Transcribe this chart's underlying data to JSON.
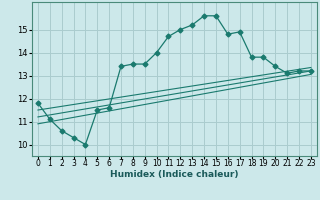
{
  "title": "",
  "xlabel": "Humidex (Indice chaleur)",
  "ylabel": "",
  "background_color": "#cce8ea",
  "grid_color": "#aaccce",
  "line_color": "#1a7a6e",
  "xlim": [
    -0.5,
    23.5
  ],
  "ylim": [
    9.5,
    16.2
  ],
  "xticks": [
    0,
    1,
    2,
    3,
    4,
    5,
    6,
    7,
    8,
    9,
    10,
    11,
    12,
    13,
    14,
    15,
    16,
    17,
    18,
    19,
    20,
    21,
    22,
    23
  ],
  "yticks": [
    10,
    11,
    12,
    13,
    14,
    15
  ],
  "series": [
    {
      "x": [
        0,
        1,
        2,
        3,
        4,
        5,
        6,
        7,
        8,
        9,
        10,
        11,
        12,
        13,
        14,
        15,
        16,
        17,
        18,
        19,
        20,
        21,
        22,
        23
      ],
      "y": [
        11.8,
        11.1,
        10.6,
        10.3,
        10.0,
        11.5,
        11.6,
        13.4,
        13.5,
        13.5,
        14.0,
        14.7,
        15.0,
        15.2,
        15.6,
        15.6,
        14.8,
        14.9,
        13.8,
        13.8,
        13.4,
        13.1,
        13.2,
        13.2
      ],
      "marker": "D",
      "markersize": 2.5
    },
    {
      "x": [
        0,
        23
      ],
      "y": [
        11.5,
        13.35
      ]
    },
    {
      "x": [
        0,
        23
      ],
      "y": [
        11.2,
        13.2
      ]
    },
    {
      "x": [
        0,
        23
      ],
      "y": [
        10.9,
        13.05
      ]
    }
  ]
}
